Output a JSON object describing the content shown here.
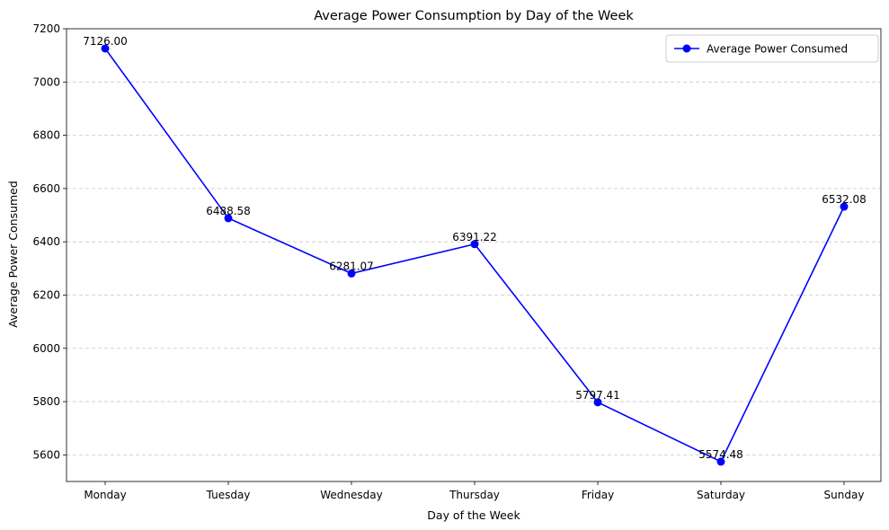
{
  "chart_data": {
    "type": "line",
    "title": "Average Power Consumption by Day of the Week",
    "xlabel": "Day of the Week",
    "ylabel": "Average Power Consumed",
    "categories": [
      "Monday",
      "Tuesday",
      "Wednesday",
      "Thursday",
      "Friday",
      "Saturday",
      "Sunday"
    ],
    "series": [
      {
        "name": "Average Power Consumed",
        "color": "#0000ff",
        "marker": "circle",
        "values": [
          7126.0,
          6488.58,
          6281.07,
          6391.22,
          5797.41,
          5574.48,
          6532.08
        ]
      }
    ],
    "data_labels": [
      "7126.00",
      "6488.58",
      "6281.07",
      "6391.22",
      "5797.41",
      "5574.48",
      "6532.08"
    ],
    "ylim": [
      5500,
      7200
    ],
    "yticks": [
      5600,
      5800,
      6000,
      6200,
      6400,
      6600,
      6800,
      7000,
      7200
    ],
    "grid": "y-dashed",
    "legend_position": "upper-right"
  }
}
